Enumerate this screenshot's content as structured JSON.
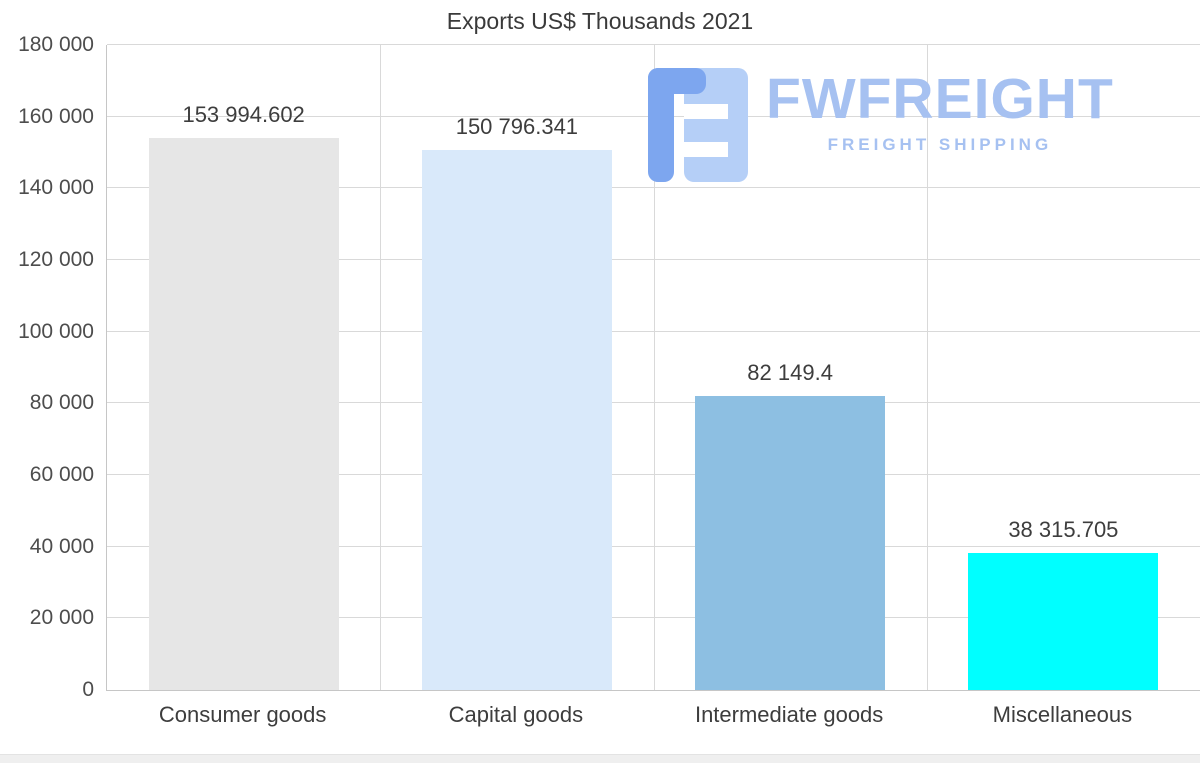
{
  "title": "Exports US$ Thousands 2021",
  "watermark": {
    "brand": "FWFREIGHT",
    "tagline": "FREIGHT SHIPPING",
    "logo_icon": "f-blocks-icon",
    "brand_color": "#a6c1f1",
    "icon_color_dark": "#7da6ef",
    "icon_color_light": "#b5cff7"
  },
  "chart_data": {
    "type": "bar",
    "title": "Exports US$ Thousands 2021",
    "categories": [
      "Consumer goods",
      "Capital goods",
      "Intermediate goods",
      "Miscellaneous"
    ],
    "values": [
      153994.602,
      150796.341,
      82149.4,
      38315.705
    ],
    "value_labels": [
      "153 994.602",
      "150 796.341",
      "82 149.4",
      "38 315.705"
    ],
    "bar_colors": [
      "#e6e6e6",
      "#d9e9fa",
      "#8dbfe2",
      "#00ffff"
    ],
    "xlabel": "",
    "ylabel": "",
    "ylim": [
      0,
      180000
    ],
    "yticks": [
      0,
      20000,
      40000,
      60000,
      80000,
      100000,
      120000,
      140000,
      160000,
      180000
    ],
    "ytick_labels": [
      "0",
      "20 000",
      "40 000",
      "60 000",
      "80 000",
      "100 000",
      "120 000",
      "140 000",
      "160 000",
      "180 000"
    ],
    "grid": true,
    "legend": false
  }
}
